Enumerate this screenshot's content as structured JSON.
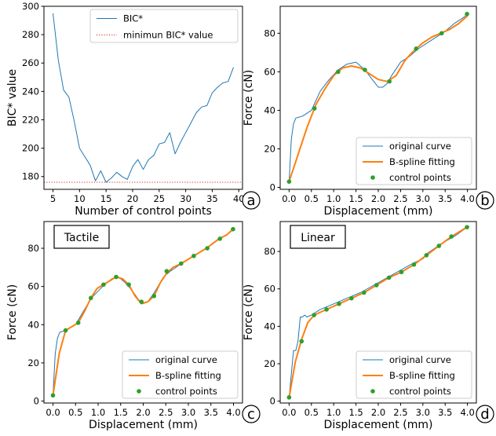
{
  "chart_data": [
    {
      "id": "a",
      "type": "line",
      "panel_label": "a",
      "xlabel": "Number of control points",
      "ylabel": "BIC* value",
      "xlim": [
        3.3,
        40.7
      ],
      "ylim": [
        171,
        300
      ],
      "xticks": [
        5,
        10,
        15,
        20,
        25,
        30,
        35,
        40
      ],
      "yticks": [
        180,
        200,
        220,
        240,
        260,
        280,
        300
      ],
      "legend_position": "top-right",
      "series": [
        {
          "name": "BIC*",
          "color": "#1f77b4",
          "style": "solid",
          "x": [
            5,
            6,
            7,
            8,
            9,
            10,
            11,
            12,
            13,
            14,
            15,
            16,
            17,
            18,
            19,
            20,
            21,
            22,
            23,
            24,
            25,
            26,
            27,
            28,
            29,
            30,
            31,
            32,
            33,
            34,
            35,
            36,
            37,
            38,
            39
          ],
          "y": [
            295,
            262,
            241,
            236,
            219,
            200,
            194,
            188,
            177,
            184,
            176,
            179,
            183,
            180,
            178,
            187,
            192,
            185,
            192,
            195,
            203,
            204,
            211,
            196,
            204,
            211,
            218,
            225,
            229,
            230,
            239,
            243,
            246,
            247,
            257
          ]
        },
        {
          "name": "minimun BIC* value",
          "color": "#d62728",
          "style": "dotted",
          "x": [
            3.3,
            40.7
          ],
          "y": [
            176,
            176
          ]
        }
      ]
    },
    {
      "id": "b",
      "type": "line",
      "panel_label": "b",
      "xlabel": "Displacement (mm)",
      "ylabel": "Force (cN)",
      "xlim": [
        -0.2,
        4.2
      ],
      "ylim": [
        -1,
        94
      ],
      "xticks": [
        0.0,
        0.5,
        1.0,
        1.5,
        2.0,
        2.5,
        3.0,
        3.5,
        4.0
      ],
      "xtick_labels": [
        "0.0",
        "0.5",
        "1.0",
        "1.5",
        "2.0",
        "2.5",
        "3.0",
        "3.5",
        "4.0"
      ],
      "yticks": [
        0,
        20,
        40,
        60,
        80
      ],
      "legend_position": "bottom-right",
      "series": [
        {
          "name": "original curve",
          "color": "#1f77b4",
          "x": [
            0.0,
            0.05,
            0.1,
            0.15,
            0.3,
            0.5,
            0.7,
            0.9,
            1.1,
            1.3,
            1.5,
            1.7,
            1.9,
            2.0,
            2.1,
            2.2,
            2.3,
            2.5,
            2.7,
            2.9,
            3.1,
            3.3,
            3.5,
            3.7,
            3.9,
            4.0
          ],
          "y": [
            3,
            25,
            33,
            36,
            37,
            40,
            50,
            56,
            61,
            64,
            65,
            61,
            55,
            52,
            52,
            54,
            58,
            65,
            68,
            72,
            75,
            78,
            81,
            85,
            88,
            90
          ]
        },
        {
          "name": "B-spline fitting",
          "color": "#ff7f0e",
          "x": [
            0.0,
            0.2,
            0.4,
            0.6,
            0.8,
            1.0,
            1.2,
            1.4,
            1.6,
            1.8,
            2.0,
            2.2,
            2.4,
            2.6,
            2.8,
            3.0,
            3.2,
            3.4,
            3.6,
            3.8,
            4.0
          ],
          "y": [
            3,
            17,
            31,
            43,
            51,
            58,
            62,
            63,
            62,
            59,
            56,
            55,
            58,
            66,
            71,
            75,
            78,
            80,
            82,
            85,
            89
          ]
        },
        {
          "name": "control points",
          "color": "#2ca02c",
          "marker": "dot",
          "x": [
            0.0,
            0.57,
            1.1,
            1.7,
            2.25,
            2.85,
            3.42,
            3.99
          ],
          "y": [
            3,
            41,
            60,
            61,
            55,
            72,
            80,
            90
          ]
        }
      ]
    },
    {
      "id": "c",
      "type": "line",
      "panel_label": "c",
      "box_label": "Tactile",
      "xlabel": "Displacement (mm)",
      "ylabel": "Force (cN)",
      "xlim": [
        -0.2,
        4.2
      ],
      "ylim": [
        -1,
        94
      ],
      "xticks": [
        0.0,
        0.5,
        1.0,
        1.5,
        2.0,
        2.5,
        3.0,
        3.5,
        4.0
      ],
      "xtick_labels": [
        "0.0",
        "0.5",
        "1.0",
        "1.5",
        "2.0",
        "2.5",
        "3.0",
        "3.5",
        "4.0"
      ],
      "yticks": [
        0,
        20,
        40,
        60,
        80
      ],
      "legend_position": "bottom-right",
      "series": [
        {
          "name": "original curve",
          "color": "#1f77b4",
          "x": [
            0.0,
            0.05,
            0.1,
            0.15,
            0.28,
            0.5,
            0.7,
            0.85,
            1.1,
            1.3,
            1.45,
            1.6,
            1.75,
            1.9,
            2.0,
            2.1,
            2.25,
            2.45,
            2.6,
            2.85,
            3.1,
            3.4,
            3.7,
            3.85,
            4.0
          ],
          "y": [
            3,
            25,
            33,
            36,
            37,
            40,
            48,
            54,
            60,
            64,
            65,
            62,
            58,
            53,
            51,
            52,
            57,
            65,
            68,
            72,
            76,
            80,
            85,
            87,
            90
          ]
        },
        {
          "name": "B-spline fitting",
          "color": "#ff7f0e",
          "x": [
            0.0,
            0.14,
            0.28,
            0.42,
            0.56,
            0.7,
            0.84,
            0.98,
            1.12,
            1.26,
            1.4,
            1.54,
            1.68,
            1.82,
            1.96,
            2.1,
            2.24,
            2.38,
            2.52,
            2.66,
            2.84,
            3.12,
            3.4,
            3.68,
            3.85,
            3.99
          ],
          "y": [
            3,
            25,
            37,
            39,
            41,
            47,
            54,
            59,
            61,
            63,
            65,
            64,
            61,
            55,
            51,
            52,
            55,
            62,
            67,
            70,
            72,
            76,
            80,
            85,
            87,
            90
          ]
        },
        {
          "name": "control points",
          "color": "#2ca02c",
          "marker": "dot",
          "x": [
            0.0,
            0.28,
            0.56,
            0.84,
            1.12,
            1.4,
            1.68,
            1.96,
            2.24,
            2.52,
            2.84,
            3.12,
            3.42,
            3.7,
            3.99
          ],
          "y": [
            3,
            37,
            41,
            54,
            61,
            65,
            61,
            52,
            55,
            68,
            72,
            76,
            80,
            85,
            90
          ]
        }
      ]
    },
    {
      "id": "d",
      "type": "line",
      "panel_label": "d",
      "box_label": "Linear",
      "xlabel": "Displacement (mm)",
      "ylabel": "Force (cN)",
      "xlim": [
        -0.2,
        4.2
      ],
      "ylim": [
        -1,
        96
      ],
      "xticks": [
        0.0,
        0.5,
        1.0,
        1.5,
        2.0,
        2.5,
        3.0,
        3.5,
        4.0
      ],
      "xtick_labels": [
        "0.0",
        "0.5",
        "1.0",
        "1.5",
        "2.0",
        "2.5",
        "3.0",
        "3.5",
        "4.0"
      ],
      "yticks": [
        0,
        20,
        40,
        60,
        80
      ],
      "legend_position": "bottom-right",
      "series": [
        {
          "name": "original curve",
          "color": "#1f77b4",
          "x": [
            0.0,
            0.1,
            0.15,
            0.2,
            0.25,
            0.3,
            0.35,
            0.4,
            0.5,
            0.7,
            1.0,
            1.3,
            1.6,
            1.9,
            2.2,
            2.5,
            2.8,
            3.0,
            3.1,
            3.4,
            3.7,
            4.0
          ],
          "y": [
            2,
            27,
            27,
            32,
            45,
            45,
            46,
            45,
            46,
            49,
            52,
            55,
            58,
            62,
            66,
            70,
            74,
            76,
            79,
            84,
            88,
            93
          ]
        },
        {
          "name": "B-spline fitting",
          "color": "#ff7f0e",
          "x": [
            0.0,
            0.14,
            0.28,
            0.42,
            0.56,
            0.84,
            1.12,
            1.4,
            1.68,
            1.96,
            2.24,
            2.52,
            2.8,
            3.08,
            3.36,
            3.64,
            3.99
          ],
          "y": [
            2,
            21,
            33,
            42,
            46,
            49,
            52,
            55,
            58,
            62,
            66,
            69,
            73,
            78,
            83,
            88,
            93
          ]
        },
        {
          "name": "control points",
          "color": "#2ca02c",
          "marker": "dot",
          "x": [
            0.0,
            0.28,
            0.56,
            0.84,
            1.12,
            1.4,
            1.68,
            1.96,
            2.24,
            2.52,
            2.8,
            3.08,
            3.36,
            3.64,
            3.99
          ],
          "y": [
            2,
            32,
            46,
            49,
            52,
            55,
            58,
            62,
            66,
            69,
            73,
            78,
            83,
            88,
            93
          ]
        }
      ]
    }
  ]
}
